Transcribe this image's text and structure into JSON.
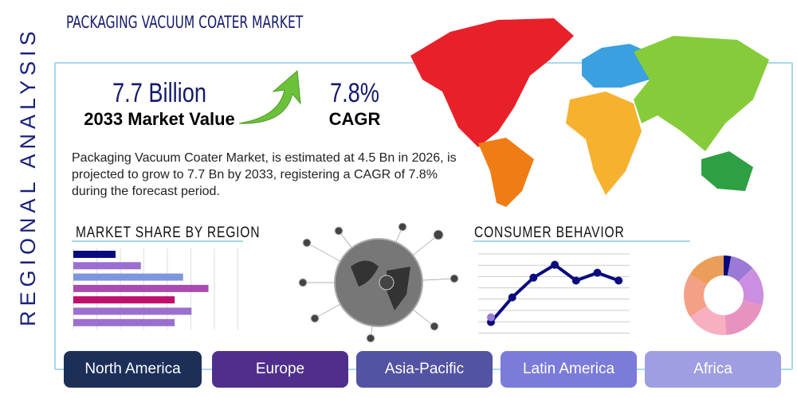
{
  "title": "PACKAGING VACUUM COATER MARKET",
  "side_label": "REGIONAL ANALYSIS",
  "market_value": {
    "value": "7.7 Billion",
    "label": "2033 Market Value"
  },
  "cagr": {
    "value": "7.8%",
    "label": "CAGR"
  },
  "description": "Packaging Vacuum Coater Market, is estimated at 4.5 Bn in 2026, is projected to grow to 7.7 Bn by 2033, registering a CAGR of 7.8% during the forecast period.",
  "sections": {
    "share": "MARKET SHARE BY REGION",
    "behavior": "CONSUMER BEHAVIOR"
  },
  "regions": [
    {
      "label": "North America",
      "color": "#1b2f58"
    },
    {
      "label": "Europe",
      "color": "#4f2e8c"
    },
    {
      "label": "Asia-Pacific",
      "color": "#5253a3"
    },
    {
      "label": "Latin America",
      "color": "#7b7bda"
    },
    {
      "label": "Africa",
      "color": "#a09ee2"
    }
  ],
  "map_colors": {
    "north_america": "#e8202a",
    "south_america": "#f07c14",
    "europe": "#3aa0e0",
    "africa": "#f6b12f",
    "asia": "#86cc3a",
    "oceania": "#2ea043"
  },
  "chart_data": [
    {
      "type": "bar",
      "orientation": "horizontal",
      "values": [
        2,
        3.2,
        5.2,
        6.4,
        4.8,
        5.6,
        4.8
      ],
      "colors": [
        "#0a0a7e",
        "#9b6fd0",
        "#7e96dd",
        "#a94bb0",
        "#c0106e",
        "#9b6fd0",
        "#9b6fd0"
      ],
      "xlim": [
        0,
        7
      ],
      "grid": true
    },
    {
      "type": "line",
      "values": [
        1,
        3.5,
        5.5,
        6.8,
        5.2,
        6,
        5.2
      ],
      "ylim": [
        0,
        7
      ],
      "color": "#0a0a7e",
      "grid": true
    },
    {
      "type": "pie",
      "donut": true,
      "values": [
        3,
        10,
        16,
        20,
        17,
        18,
        16
      ],
      "colors": [
        "#0a0a7e",
        "#9a7ad6",
        "#cc8ee0",
        "#e693bf",
        "#f8b0c0",
        "#f4a084",
        "#eb9d5a"
      ]
    }
  ]
}
